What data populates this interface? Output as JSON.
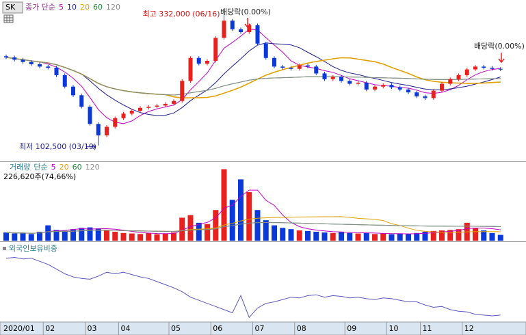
{
  "chart_data": [
    {
      "type": "candlestick",
      "ticker": "SK",
      "ma_label": "종가 단순",
      "ma_periods": [
        5,
        10,
        20,
        60,
        120
      ],
      "ma_colors": [
        "#c000c0",
        "#1a1a8c",
        "#e0a000",
        "#1e8a3a",
        "#8a8a8a"
      ],
      "up_color": "#e8211f",
      "down_color": "#0b38d8",
      "ylim": [
        76000,
        356000
      ],
      "annotations": [
        "최고 332,000 (06/16)",
        "최저 102,500 (03/19)",
        "배당락(0.00%)",
        "배당락(0.00%)"
      ],
      "open": [
        258000,
        256000,
        252000,
        248000,
        244000,
        240000,
        238000,
        225000,
        205000,
        190000,
        170000,
        140000,
        120000,
        135000,
        150000,
        158000,
        163000,
        168000,
        170000,
        172000,
        175000,
        180000,
        215000,
        255000,
        245000,
        250000,
        290000,
        320000,
        305000,
        300000,
        312000,
        280000,
        255000,
        240000,
        238000,
        236000,
        242000,
        240000,
        228000,
        218000,
        222000,
        215000,
        210000,
        212000,
        200000,
        205000,
        208000,
        204000,
        200000,
        195000,
        188000,
        185000,
        198000,
        210000,
        218000,
        225000,
        235000,
        240000,
        238000,
        236000
      ],
      "high": [
        261000,
        259000,
        255000,
        251000,
        247000,
        243000,
        241000,
        228000,
        208000,
        193000,
        173000,
        143000,
        138000,
        153000,
        161000,
        166000,
        171000,
        173000,
        175000,
        178000,
        183000,
        218000,
        258000,
        258000,
        253000,
        293000,
        332000,
        323000,
        308000,
        315000,
        315000,
        283000,
        258000,
        243000,
        241000,
        245000,
        245000,
        243000,
        231000,
        225000,
        225000,
        218000,
        215000,
        215000,
        208000,
        211000,
        211000,
        207000,
        203000,
        198000,
        191000,
        201000,
        213000,
        221000,
        228000,
        238000,
        243000,
        243000,
        241000,
        239000
      ],
      "low": [
        253000,
        249000,
        245000,
        241000,
        237000,
        235000,
        222000,
        202000,
        187000,
        167000,
        137000,
        102500,
        117000,
        132000,
        147000,
        155000,
        160000,
        165000,
        167000,
        169000,
        172000,
        177000,
        212000,
        242000,
        242000,
        247000,
        287000,
        302000,
        297000,
        297000,
        277000,
        252000,
        237000,
        235000,
        233000,
        233000,
        237000,
        225000,
        215000,
        215000,
        212000,
        207000,
        207000,
        197000,
        197000,
        202000,
        201000,
        197000,
        192000,
        185000,
        182000,
        182000,
        195000,
        207000,
        215000,
        222000,
        232000,
        235000,
        233000,
        232000
      ],
      "close": [
        256000,
        252000,
        248000,
        244000,
        240000,
        238000,
        225000,
        205000,
        190000,
        170000,
        140000,
        120000,
        135000,
        150000,
        158000,
        163000,
        168000,
        170000,
        172000,
        175000,
        180000,
        215000,
        255000,
        245000,
        250000,
        290000,
        320000,
        305000,
        300000,
        312000,
        280000,
        255000,
        240000,
        238000,
        236000,
        242000,
        240000,
        228000,
        218000,
        222000,
        215000,
        210000,
        212000,
        200000,
        205000,
        208000,
        204000,
        200000,
        195000,
        188000,
        185000,
        198000,
        210000,
        218000,
        225000,
        235000,
        240000,
        238000,
        236000,
        235000
      ]
    },
    {
      "type": "bar",
      "title": "거래량",
      "ma_label": "단순",
      "info": "226,620주(74,66%)",
      "ma_periods": [
        5,
        20,
        60,
        120
      ],
      "ma_colors": [
        "#c000c0",
        "#e0a000",
        "#1e8a3a",
        "#8a8a8a"
      ],
      "ylim": [
        0,
        3000000
      ],
      "values": [
        320000,
        280000,
        300000,
        260000,
        350000,
        600000,
        420000,
        380000,
        450000,
        500000,
        520000,
        480000,
        400000,
        350000,
        300000,
        280000,
        260000,
        300000,
        250000,
        280000,
        320000,
        900000,
        1000000,
        700000,
        650000,
        1200000,
        2800000,
        1600000,
        2400000,
        1900000,
        1200000,
        800000,
        600000,
        500000,
        450000,
        400000,
        380000,
        350000,
        320000,
        300000,
        350000,
        300000,
        280000,
        300000,
        260000,
        280000,
        250000,
        270000,
        260000,
        300000,
        350000,
        380000,
        400000,
        420000,
        450000,
        700000,
        500000,
        400000,
        300000,
        226620
      ]
    },
    {
      "type": "line",
      "title": "외국인보유비중",
      "color": "#5a55b8",
      "ylim": [
        40.5,
        50.5
      ],
      "values": [
        48.6,
        48.7,
        48.5,
        48.6,
        48.2,
        47.8,
        47.2,
        46.6,
        46.2,
        46.0,
        45.9,
        46.3,
        46.8,
        46.6,
        46.8,
        46.5,
        46.2,
        46.0,
        45.6,
        45.2,
        44.8,
        44.3,
        43.6,
        43.2,
        42.8,
        42.4,
        42.0,
        41.6,
        43.8,
        41.0,
        42.2,
        42.8,
        43.0,
        43.3,
        43.6,
        43.5,
        43.8,
        43.9,
        43.6,
        43.8,
        43.7,
        43.5,
        43.6,
        43.4,
        43.3,
        43.5,
        43.4,
        43.2,
        43.0,
        43.0,
        42.6,
        42.3,
        42.4,
        42.0,
        41.8,
        41.7,
        41.4,
        41.3,
        41.2,
        41.3
      ],
      "xticks": [
        {
          "value": 0,
          "label": "2020/01"
        },
        {
          "value": 5,
          "label": "02"
        },
        {
          "value": 10,
          "label": "03"
        },
        {
          "value": 14,
          "label": "04"
        },
        {
          "value": 20,
          "label": "05"
        },
        {
          "value": 25,
          "label": "06"
        },
        {
          "value": 30,
          "label": "07"
        },
        {
          "value": 35,
          "label": "08"
        },
        {
          "value": 41,
          "label": "09"
        },
        {
          "value": 46,
          "label": "10"
        },
        {
          "value": 50,
          "label": "11"
        },
        {
          "value": 55,
          "label": "12"
        }
      ]
    }
  ]
}
